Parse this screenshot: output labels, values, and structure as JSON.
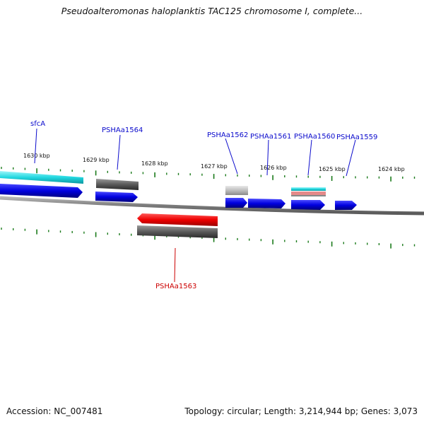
{
  "header": {
    "title": "Pseudoalteromonas haloplanktis TAC125 chromosome I, complete..."
  },
  "footer": {
    "accession": "Accession: NC_007481",
    "summary": "Topology: circular; Length: 3,214,944 bp; Genes: 3,073"
  },
  "map": {
    "tick_labels": [
      "1630 kbp",
      "1629 kbp",
      "1628 kbp",
      "1627 kbp",
      "1626 kbp",
      "1625 kbp",
      "1624 kbp"
    ],
    "forward_genes": [
      "sfcA",
      "PSHAa1564",
      "PSHAa1562",
      "PSHAa1561",
      "PSHAa1560",
      "PSHAa1559"
    ],
    "reverse_genes": [
      "PSHAa1563"
    ],
    "colors": {
      "forward_label": "#0a0acc",
      "reverse_label": "#cc0000",
      "cds_forward": "#1010dd",
      "cds_reverse": "#ee1111",
      "gene_track": "#606060",
      "cyan_feature": "#22d8e0",
      "tick": "#1a7a1a",
      "backbone": "#8a8a8a"
    }
  }
}
